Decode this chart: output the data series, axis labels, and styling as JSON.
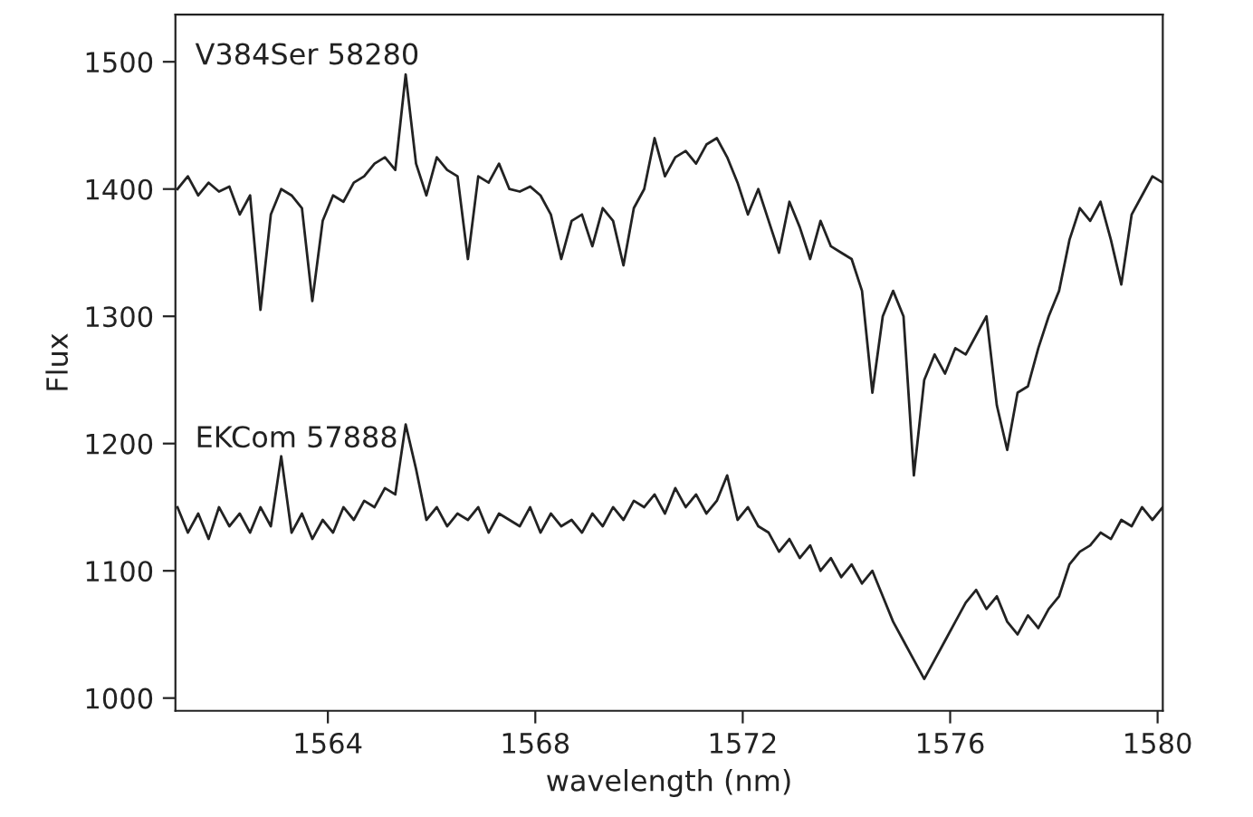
{
  "chart_data": {
    "type": "line",
    "xlabel": "wavelength (nm)",
    "ylabel": "Flux",
    "x": [
      1561.1,
      1561.3,
      1561.5,
      1561.7,
      1561.9,
      1562.1,
      1562.3,
      1562.5,
      1562.7,
      1562.9,
      1563.1,
      1563.3,
      1563.5,
      1563.7,
      1563.9,
      1564.1,
      1564.3,
      1564.5,
      1564.7,
      1564.9,
      1565.1,
      1565.3,
      1565.5,
      1565.7,
      1565.9,
      1566.1,
      1566.3,
      1566.5,
      1566.7,
      1566.9,
      1567.1,
      1567.3,
      1567.5,
      1567.7,
      1567.9,
      1568.1,
      1568.3,
      1568.5,
      1568.7,
      1568.9,
      1569.1,
      1569.3,
      1569.5,
      1569.7,
      1569.9,
      1570.1,
      1570.3,
      1570.5,
      1570.7,
      1570.9,
      1571.1,
      1571.3,
      1571.5,
      1571.7,
      1571.9,
      1572.1,
      1572.3,
      1572.5,
      1572.7,
      1572.9,
      1573.1,
      1573.3,
      1573.5,
      1573.7,
      1573.9,
      1574.1,
      1574.3,
      1574.5,
      1574.7,
      1574.9,
      1575.1,
      1575.3,
      1575.5,
      1575.7,
      1575.9,
      1576.1,
      1576.3,
      1576.5,
      1576.7,
      1576.9,
      1577.1,
      1577.3,
      1577.5,
      1577.7,
      1577.9,
      1578.1,
      1578.3,
      1578.5,
      1578.7,
      1578.9,
      1579.1,
      1579.3,
      1579.5,
      1579.7,
      1579.9,
      1580.1
    ],
    "series": [
      {
        "color": "#222222",
        "values": [
          1400,
          1410,
          1395,
          1405,
          1398,
          1402,
          1380,
          1395,
          1305,
          1380,
          1400,
          1395,
          1385,
          1312,
          1375,
          1395,
          1390,
          1405,
          1410,
          1420,
          1425,
          1415,
          1490,
          1420,
          1395,
          1425,
          1415,
          1410,
          1345,
          1410,
          1405,
          1420,
          1400,
          1398,
          1402,
          1395,
          1380,
          1345,
          1375,
          1380,
          1355,
          1385,
          1375,
          1340,
          1385,
          1400,
          1440,
          1410,
          1425,
          1430,
          1420,
          1435,
          1440,
          1425,
          1405,
          1380,
          1400,
          1375,
          1350,
          1390,
          1370,
          1345,
          1375,
          1355,
          1350,
          1345,
          1320,
          1240,
          1300,
          1320,
          1300,
          1175,
          1250,
          1270,
          1255,
          1275,
          1270,
          1285,
          1300,
          1230,
          1195,
          1240,
          1245,
          1275,
          1300,
          1320,
          1360,
          1385,
          1375,
          1390,
          1360,
          1325,
          1380,
          1395,
          1410,
          1405
        ]
      },
      {
        "color": "#222222",
        "values": [
          1150,
          1130,
          1145,
          1125,
          1150,
          1135,
          1145,
          1130,
          1150,
          1135,
          1190,
          1130,
          1145,
          1125,
          1140,
          1130,
          1150,
          1140,
          1155,
          1150,
          1165,
          1160,
          1215,
          1180,
          1140,
          1150,
          1135,
          1145,
          1140,
          1150,
          1130,
          1145,
          1140,
          1135,
          1150,
          1130,
          1145,
          1135,
          1140,
          1130,
          1145,
          1135,
          1150,
          1140,
          1155,
          1150,
          1160,
          1145,
          1165,
          1150,
          1160,
          1145,
          1155,
          1175,
          1140,
          1150,
          1135,
          1130,
          1115,
          1125,
          1110,
          1120,
          1100,
          1110,
          1095,
          1105,
          1090,
          1100,
          1080,
          1060,
          1045,
          1030,
          1015,
          1030,
          1045,
          1060,
          1075,
          1085,
          1070,
          1080,
          1060,
          1050,
          1065,
          1055,
          1070,
          1080,
          1105,
          1115,
          1120,
          1130,
          1125,
          1140,
          1135,
          1150,
          1140,
          1150
        ]
      }
    ],
    "annotations": [
      "V384Ser 58280",
      "EKCom 57888"
    ],
    "xlim": [
      1561.06,
      1580.1
    ],
    "ylim": [
      990,
      1537
    ],
    "xticks": [
      1564,
      1568,
      1572,
      1576,
      1580
    ],
    "yticks": [
      1000,
      1100,
      1200,
      1300,
      1400,
      1500
    ],
    "grid": false,
    "legend": false,
    "line_style": "solid",
    "marker": "none"
  }
}
